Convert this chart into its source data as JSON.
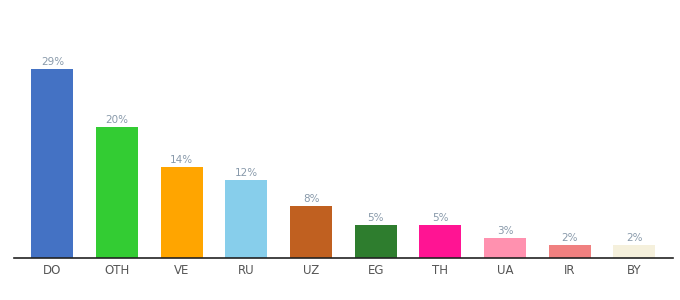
{
  "categories": [
    "DO",
    "OTH",
    "VE",
    "RU",
    "UZ",
    "EG",
    "TH",
    "UA",
    "IR",
    "BY"
  ],
  "values": [
    29,
    20,
    14,
    12,
    8,
    5,
    5,
    3,
    2,
    2
  ],
  "bar_colors": [
    "#4472C4",
    "#33CC33",
    "#FFA500",
    "#87CEEB",
    "#C06020",
    "#2E7D2E",
    "#FF1493",
    "#FF91AF",
    "#F08080",
    "#F5F0DC"
  ],
  "label_color": "#8899AA",
  "label_fontsize": 7.5,
  "xlabel_fontsize": 8.5,
  "ylim": [
    0,
    34
  ],
  "background_color": "#ffffff",
  "bar_width": 0.65
}
